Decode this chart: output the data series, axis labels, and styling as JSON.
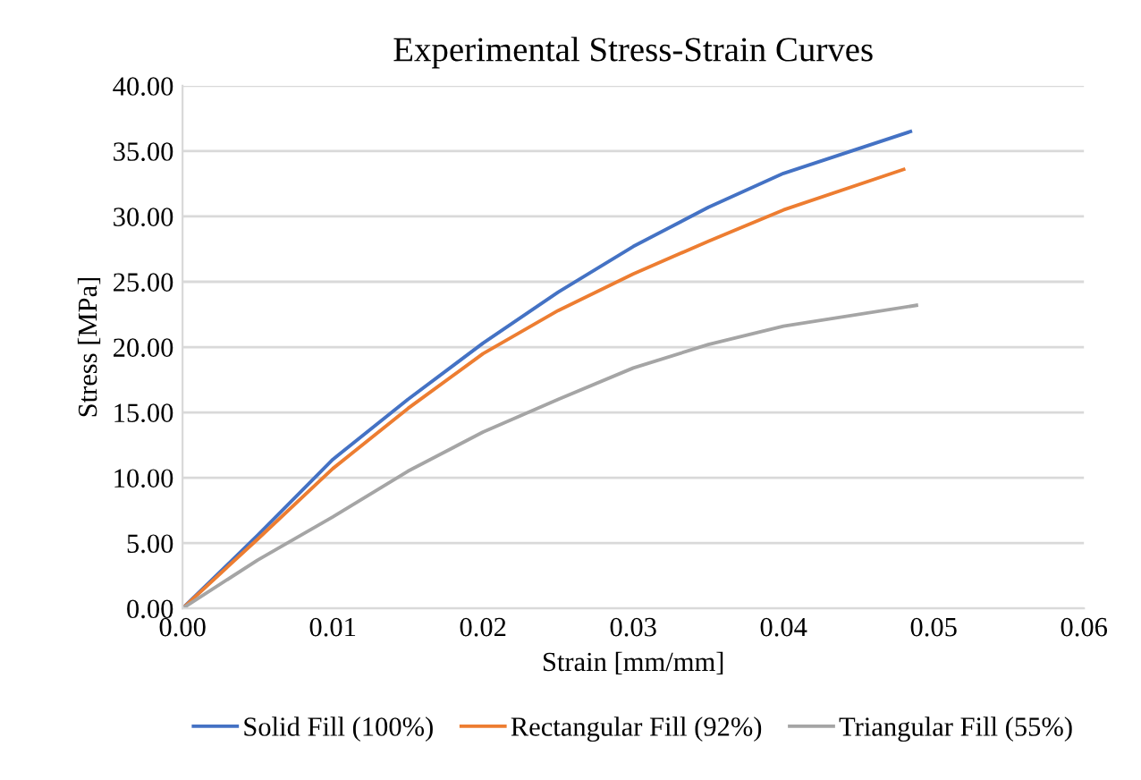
{
  "chart_data": {
    "type": "line",
    "title": "Experimental Stress-Strain Curves",
    "xlabel": "Strain [mm/mm]",
    "ylabel": "Stress [MPa]",
    "xlim": [
      0,
      0.06
    ],
    "ylim": [
      0,
      40
    ],
    "xticks": [
      {
        "value": 0,
        "label": "0.00"
      },
      {
        "value": 0.01,
        "label": "0.01"
      },
      {
        "value": 0.02,
        "label": "0.02"
      },
      {
        "value": 0.03,
        "label": "0.03"
      },
      {
        "value": 0.04,
        "label": "0.04"
      },
      {
        "value": 0.05,
        "label": "0.05"
      },
      {
        "value": 0.06,
        "label": "0.06"
      }
    ],
    "yticks": [
      {
        "value": 0,
        "label": "0.00"
      },
      {
        "value": 5,
        "label": "5.00"
      },
      {
        "value": 10,
        "label": "10.00"
      },
      {
        "value": 15,
        "label": "15.00"
      },
      {
        "value": 20,
        "label": "20.00"
      },
      {
        "value": 25,
        "label": "25.00"
      },
      {
        "value": 30,
        "label": "30.00"
      },
      {
        "value": 35,
        "label": "35.00"
      },
      {
        "value": 40,
        "label": "40.00"
      }
    ],
    "grid": "y",
    "legend": "bottom",
    "marker": "none",
    "line_style": "solid",
    "series": [
      {
        "name": "Solid Fill (100%)",
        "color": "#4472c4",
        "x": [
          0,
          0.005,
          0.01,
          0.015,
          0.02,
          0.025,
          0.03,
          0.035,
          0.04,
          0.04845
        ],
        "values": [
          0,
          5.6,
          11.4,
          16.0,
          20.3,
          24.2,
          27.7,
          30.7,
          33.3,
          36.5
        ]
      },
      {
        "name": "Rectangular Fill (92%)",
        "color": "#ed7d31",
        "x": [
          0,
          0.005,
          0.01,
          0.015,
          0.02,
          0.025,
          0.03,
          0.035,
          0.04,
          0.048
        ],
        "values": [
          0,
          5.3,
          10.7,
          15.3,
          19.5,
          22.8,
          25.6,
          28.1,
          30.5,
          33.6
        ]
      },
      {
        "name": "Triangular Fill (55%)",
        "color": "#a5a5a5",
        "x": [
          0,
          0.005,
          0.01,
          0.015,
          0.02,
          0.025,
          0.03,
          0.035,
          0.04,
          0.04885
        ],
        "values": [
          0,
          3.7,
          7.0,
          10.5,
          13.5,
          16.0,
          18.4,
          20.2,
          21.6,
          23.2
        ]
      }
    ]
  }
}
